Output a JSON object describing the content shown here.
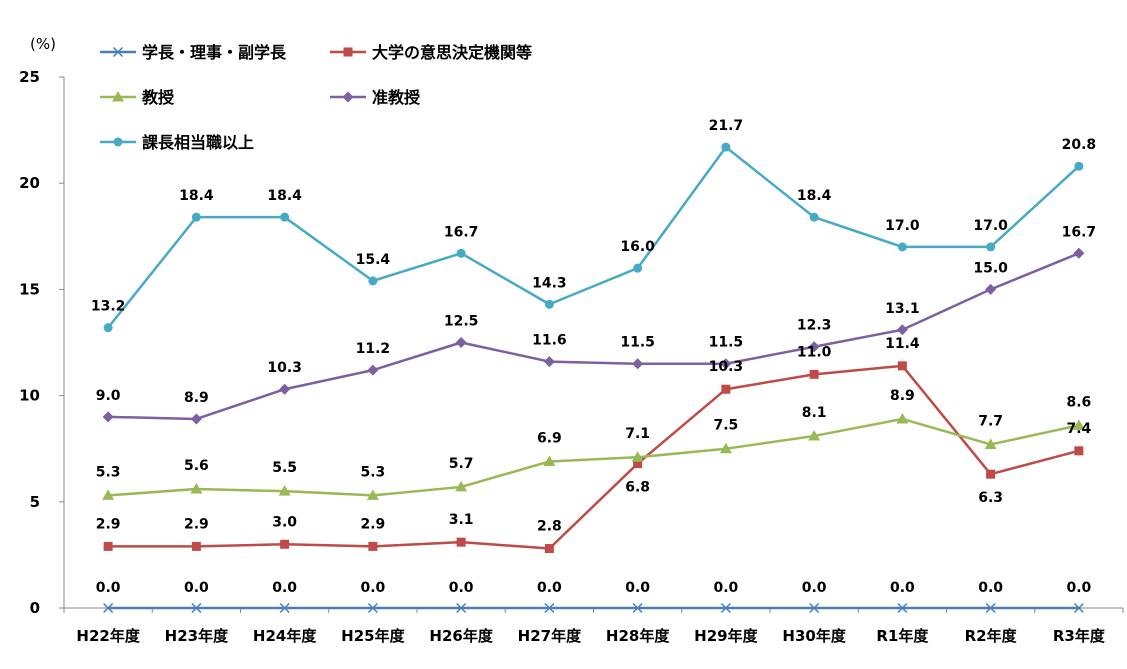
{
  "chart_data": {
    "type": "line",
    "unit": "(%)",
    "categories": [
      "H22年度",
      "H23年度",
      "H24年度",
      "H25年度",
      "H26年度",
      "H27年度",
      "H28年度",
      "H29年度",
      "H30年度",
      "R1年度",
      "R2年度",
      "R3年度"
    ],
    "ylim": [
      0,
      25
    ],
    "yticks": [
      0,
      5,
      10,
      15,
      20,
      25
    ],
    "grid": false,
    "legend_position": "top-left",
    "series": [
      {
        "name": "学長・理事・副学長",
        "color": "#4a7ebb",
        "marker": "x",
        "values": [
          0.0,
          0.0,
          0.0,
          0.0,
          0.0,
          0.0,
          0.0,
          0.0,
          0.0,
          0.0,
          0.0,
          0.0
        ]
      },
      {
        "name": "大学の意思決定機関等",
        "color": "#be4b48",
        "marker": "square",
        "values": [
          2.9,
          2.9,
          3.0,
          2.9,
          3.1,
          2.8,
          6.8,
          10.3,
          11.0,
          11.4,
          6.3,
          7.4
        ]
      },
      {
        "name": "教授",
        "color": "#98b954",
        "marker": "triangle",
        "values": [
          5.3,
          5.6,
          5.5,
          5.3,
          5.7,
          6.9,
          7.1,
          7.5,
          8.1,
          8.9,
          7.7,
          8.6
        ]
      },
      {
        "name": "准教授",
        "color": "#7d60a0",
        "marker": "diamond",
        "values": [
          9.0,
          8.9,
          10.3,
          11.2,
          12.5,
          11.6,
          11.5,
          11.5,
          12.3,
          13.1,
          15.0,
          16.7
        ]
      },
      {
        "name": "課長相当職以上",
        "color": "#46aac5",
        "marker": "circle",
        "values": [
          13.2,
          18.4,
          18.4,
          15.4,
          16.7,
          14.3,
          16.0,
          21.7,
          18.4,
          17.0,
          17.0,
          20.8
        ]
      }
    ]
  }
}
